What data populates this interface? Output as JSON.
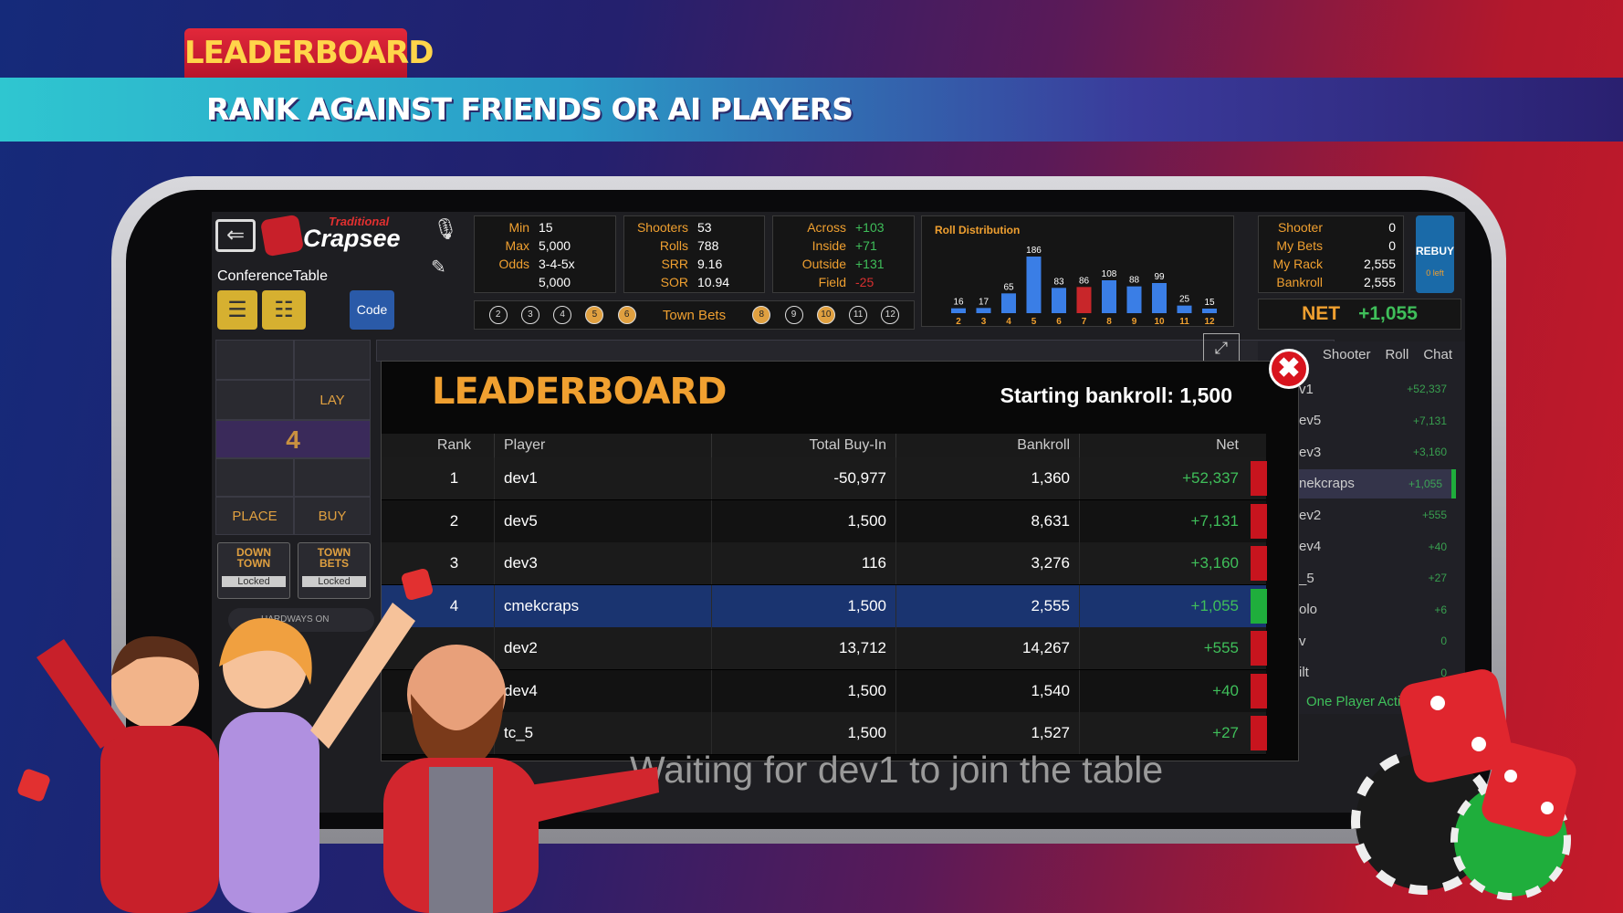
{
  "banner": {
    "tag": "LEADERBOARD",
    "subtitle": "RANK AGAINST FRIENDS OR AI PLAYERS"
  },
  "app": {
    "brand_small": "Traditional",
    "brand": "Crapsee",
    "table_name": "ConferenceTable",
    "code_button": "Code"
  },
  "limits": [
    {
      "label": "Min",
      "value": "15"
    },
    {
      "label": "Max",
      "value": "5,000"
    },
    {
      "label": "Odds",
      "value": "3-4-5x"
    },
    {
      "value": "5,000"
    }
  ],
  "stats": [
    {
      "label": "Shooters",
      "value": "53"
    },
    {
      "label": "Rolls",
      "value": "788"
    },
    {
      "label": "SRR",
      "value": "9.16"
    },
    {
      "label": "SOR",
      "value": "10.94"
    }
  ],
  "regions": [
    {
      "label": "Across",
      "value": "+103",
      "color": "#3fbf5a"
    },
    {
      "label": "Inside",
      "value": "+71",
      "color": "#3fbf5a"
    },
    {
      "label": "Outside",
      "value": "+131",
      "color": "#3fbf5a"
    },
    {
      "label": "Field",
      "value": "-25",
      "color": "#d83030"
    }
  ],
  "points_low": [
    {
      "label": "2",
      "active": false
    },
    {
      "label": "3",
      "active": false
    },
    {
      "label": "4",
      "active": false
    },
    {
      "label": "5",
      "active": true
    },
    {
      "label": "6",
      "active": true
    }
  ],
  "town_bets_label": "Town Bets",
  "points_high": [
    {
      "label": "8",
      "active": true
    },
    {
      "label": "9",
      "active": false
    },
    {
      "label": "10",
      "active": true
    },
    {
      "label": "11",
      "active": false
    },
    {
      "label": "12",
      "active": false
    }
  ],
  "roll_distribution": {
    "title": "Roll Distribution",
    "rolls": [
      2,
      3,
      4,
      5,
      6,
      7,
      8,
      9,
      10,
      11,
      12
    ],
    "counts": [
      16,
      17,
      65,
      186,
      83,
      86,
      108,
      88,
      99,
      25,
      15
    ],
    "colors": [
      "#3a7ee6",
      "#3a7ee6",
      "#3a7ee6",
      "#3a7ee6",
      "#3a7ee6",
      "#c8262a",
      "#3a7ee6",
      "#3a7ee6",
      "#3a7ee6",
      "#3a7ee6",
      "#3a7ee6"
    ]
  },
  "account": [
    {
      "label": "Shooter",
      "value": "0"
    },
    {
      "label": "My Bets",
      "value": "0"
    },
    {
      "label": "My Rack",
      "value": "2,555"
    },
    {
      "label": "Bankroll",
      "value": "2,555"
    }
  ],
  "rebuy": {
    "label": "REBUY",
    "sub": "0 left"
  },
  "net": {
    "label": "NET",
    "value": "+1,055"
  },
  "side_tabs": [
    "Shooter",
    "Roll",
    "Chat"
  ],
  "side_list": {
    "selected": 3,
    "rows": [
      {
        "name": "v1",
        "value": "+52,337"
      },
      {
        "name": "ev5",
        "value": "+7,131"
      },
      {
        "name": "ev3",
        "value": "+3,160"
      },
      {
        "name": "nekcraps",
        "value": "+1,055"
      },
      {
        "name": "ev2",
        "value": "+555"
      },
      {
        "name": "ev4",
        "value": "+40"
      },
      {
        "name": "_5",
        "value": "+27"
      },
      {
        "name": "olo",
        "value": "+6"
      },
      {
        "name": "v",
        "value": "0"
      },
      {
        "name": "ilt",
        "value": "0"
      }
    ],
    "footer": "One Player Acti"
  },
  "board": {
    "lay": "LAY",
    "number": "4",
    "place": "PLACE",
    "buy": "BUY",
    "down_town": "DOWN TOWN",
    "down_town_status": "Locked",
    "town_bets": "TOWN BETS",
    "town_bets_status": "Locked",
    "hardways": "HARDWAYS ON"
  },
  "leaderboard": {
    "title": "LEADERBOARD",
    "starting": "Starting bankroll: 1,500",
    "columns": [
      "Rank",
      "Player",
      "Total Buy-In",
      "Bankroll",
      "Net"
    ],
    "selected": 3,
    "rows": [
      {
        "rank": 1,
        "player": "dev1",
        "buy_in": "-50,977",
        "bankroll": "1,360",
        "net": "+52,337",
        "color": "#c8141e"
      },
      {
        "rank": 2,
        "player": "dev5",
        "buy_in": "1,500",
        "bankroll": "8,631",
        "net": "+7,131",
        "color": "#c8141e"
      },
      {
        "rank": 3,
        "player": "dev3",
        "buy_in": "116",
        "bankroll": "3,276",
        "net": "+3,160",
        "color": "#c8141e"
      },
      {
        "rank": 4,
        "player": "cmekcraps",
        "buy_in": "1,500",
        "bankroll": "2,555",
        "net": "+1,055",
        "color": "#1fae3c"
      },
      {
        "rank": null,
        "player": "dev2",
        "buy_in": "13,712",
        "bankroll": "14,267",
        "net": "+555",
        "color": "#c8141e"
      },
      {
        "rank": null,
        "player": "dev4",
        "buy_in": "1,500",
        "bankroll": "1,540",
        "net": "+40",
        "color": "#c8141e"
      },
      {
        "rank": null,
        "player": "tc_5",
        "buy_in": "1,500",
        "bankroll": "1,527",
        "net": "+27",
        "color": "#c8141e"
      }
    ]
  },
  "status": "Waiting for dev1 to join the table"
}
